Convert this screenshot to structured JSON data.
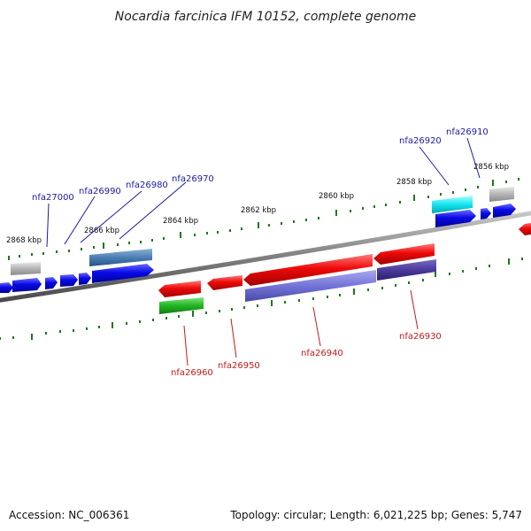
{
  "title": "Nocardia farcinica IFM 10152, complete genome",
  "kbp_labels": [
    "2868 kbp",
    "2866 kbp",
    "2864 kbp",
    "2862 kbp",
    "2860 kbp",
    "2858 kbp",
    "2856 kbp"
  ],
  "genes_forward": [
    "nfa27000",
    "nfa26990",
    "nfa26980",
    "nfa26970",
    "nfa26920",
    "nfa26910"
  ],
  "genes_reverse": [
    "nfa26960",
    "nfa26950",
    "nfa26940",
    "nfa26930"
  ],
  "footer": {
    "accession": "Accession: NC_006361",
    "topology": "Topology: circular; Length: 6,021,225 bp; Genes: 5,747"
  },
  "colors": {
    "forward_gene": "#0a0ae6",
    "reverse_gene": "#e60a0a",
    "backbone": "#808080",
    "tick": "#1a7a1a",
    "forward_label": "#1a1aa6",
    "reverse_label": "#c41a1a"
  }
}
